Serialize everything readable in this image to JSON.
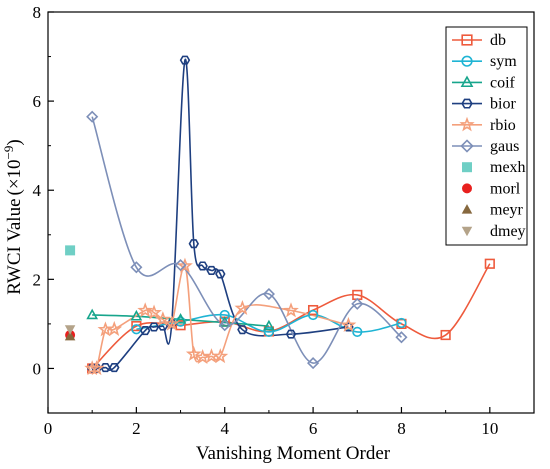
{
  "chart_data": {
    "type": "line",
    "xlabel": "Vanishing Moment Order",
    "ylabel": "RWCI Value",
    "ylabel_unit": "(×10",
    "ylabel_exponent": "−9",
    "ylabel_close": ")",
    "xlim": [
      0,
      11
    ],
    "ylim": [
      -1,
      8
    ],
    "x_ticks": [
      0,
      2,
      4,
      6,
      8,
      10
    ],
    "y_ticks": [
      0,
      2,
      4,
      6,
      8
    ],
    "grid": false,
    "legend_position": "top-right",
    "series": [
      {
        "name": "db",
        "color": "#ee5a3c",
        "marker": "square",
        "x": [
          1,
          2,
          3,
          4,
          5,
          6,
          7,
          8,
          9,
          10
        ],
        "y": [
          0.0,
          0.95,
          0.97,
          1.05,
          0.83,
          1.31,
          1.65,
          1.0,
          0.75,
          2.35
        ]
      },
      {
        "name": "sym",
        "color": "#1fb4d4",
        "marker": "circle",
        "x": [
          2,
          3,
          4,
          5,
          6,
          7,
          8
        ],
        "y": [
          0.88,
          1.05,
          1.2,
          0.82,
          1.2,
          0.82,
          1.02
        ]
      },
      {
        "name": "coif",
        "color": "#17a58c",
        "marker": "triangle-up",
        "x": [
          1,
          2,
          3,
          4,
          5
        ],
        "y": [
          1.2,
          1.17,
          1.1,
          1.03,
          0.95
        ]
      },
      {
        "name": "bior",
        "color": "#1e3f80",
        "marker": "hexagon",
        "x": [
          1.0,
          1.1,
          1.3,
          1.5,
          2.2,
          2.4,
          2.6,
          2.8,
          3.1,
          3.3,
          3.5,
          3.7,
          3.9,
          4.4,
          5.5,
          6.8
        ],
        "y": [
          0.0,
          0.0,
          0.02,
          0.02,
          0.85,
          0.93,
          0.95,
          1.0,
          6.92,
          2.8,
          2.3,
          2.2,
          2.12,
          0.87,
          0.77,
          0.93
        ]
      },
      {
        "name": "rbio",
        "color": "#f4a07c",
        "marker": "star",
        "x": [
          1.0,
          1.1,
          1.3,
          1.5,
          2.2,
          2.4,
          2.6,
          2.8,
          3.1,
          3.3,
          3.5,
          3.7,
          3.9,
          4.4,
          5.5,
          6.8
        ],
        "y": [
          0.0,
          0.0,
          0.87,
          0.88,
          1.3,
          1.25,
          1.1,
          1.0,
          2.3,
          0.32,
          0.25,
          0.27,
          0.27,
          1.35,
          1.3,
          0.97
        ]
      },
      {
        "name": "gaus",
        "color": "#7d8fb8",
        "marker": "diamond",
        "x": [
          1,
          2,
          3,
          4,
          5,
          6,
          7,
          8
        ],
        "y": [
          5.65,
          2.27,
          2.32,
          0.97,
          1.67,
          0.12,
          1.45,
          0.7
        ]
      },
      {
        "name": "mexh",
        "color": "#6fcfc5",
        "marker": "square-filled",
        "x": [
          0.5
        ],
        "y": [
          2.65
        ]
      },
      {
        "name": "morl",
        "color": "#e8201e",
        "marker": "circle-filled",
        "x": [
          0.5
        ],
        "y": [
          0.75
        ]
      },
      {
        "name": "meyr",
        "color": "#86683e",
        "marker": "triangle-up-filled",
        "x": [
          0.5
        ],
        "y": [
          0.72
        ]
      },
      {
        "name": "dmey",
        "color": "#b4a389",
        "marker": "triangle-down-filled",
        "x": [
          0.5
        ],
        "y": [
          0.88
        ]
      }
    ]
  }
}
